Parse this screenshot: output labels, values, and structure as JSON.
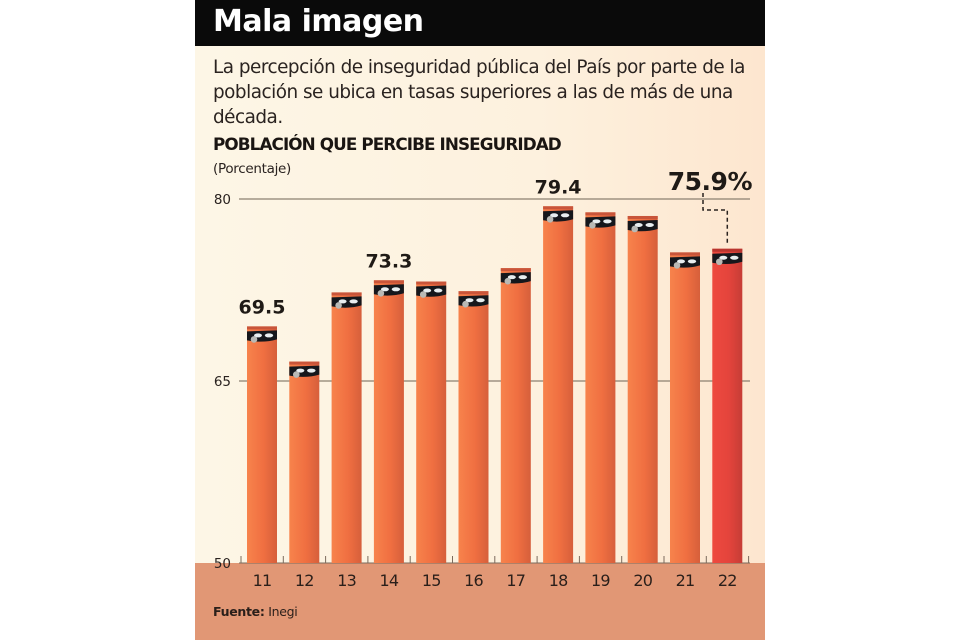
{
  "header": {
    "title": "Mala imagen"
  },
  "subtitle": "La percepción de inseguridad pública del País por parte de la población se ubica en tasas superiores a las de más de una década.",
  "source": {
    "label": "Fuente:",
    "value": "Inegi"
  },
  "colors": {
    "bar_left": "#f7834c",
    "bar_right": "#d65f3b",
    "bar_cap": "#c9553a",
    "highlight_left": "#ee4a3f",
    "highlight_right": "#c63d36",
    "gridline": "#8c8070",
    "bottom_band": "#e19775"
  },
  "chart_data": {
    "type": "bar",
    "title": "POBLACIÓN QUE PERCIBE INSEGURIDAD",
    "ylabel": "(Porcentaje)",
    "xlabel": "",
    "categories": [
      "11",
      "12",
      "13",
      "14",
      "15",
      "16",
      "17",
      "18",
      "19",
      "20",
      "21",
      "22"
    ],
    "values": [
      69.5,
      66.6,
      72.3,
      73.3,
      73.2,
      72.4,
      74.3,
      79.4,
      78.9,
      78.6,
      75.6,
      75.9
    ],
    "ylim": [
      50,
      80
    ],
    "yticks": [
      50,
      65,
      80
    ],
    "gridlines": [
      65,
      80
    ],
    "highlight_index": 11,
    "data_labels": [
      {
        "index": 0,
        "text": "69.5"
      },
      {
        "index": 3,
        "text": "73.3"
      },
      {
        "index": 7,
        "text": "79.4"
      }
    ],
    "highlight_label": "75.9%",
    "bar_icon": "masked-face-icon"
  }
}
